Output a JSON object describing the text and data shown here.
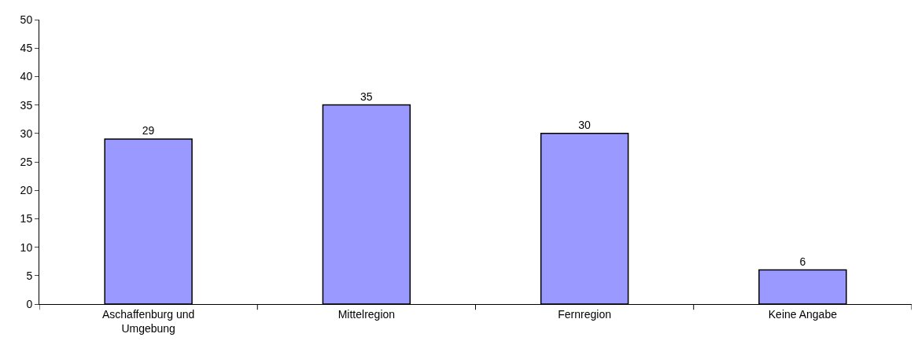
{
  "chart_data": {
    "type": "bar",
    "categories": [
      "Aschaffenburg und Umgebung",
      "Mittelregion",
      "Fernregion",
      "Keine Angabe"
    ],
    "values": [
      29,
      35,
      30,
      6
    ],
    "color": "#9999ff",
    "ylim": [
      0,
      50
    ],
    "yticks": [
      0,
      5,
      10,
      15,
      20,
      25,
      30,
      35,
      40,
      45,
      50
    ],
    "data_labels": true
  }
}
